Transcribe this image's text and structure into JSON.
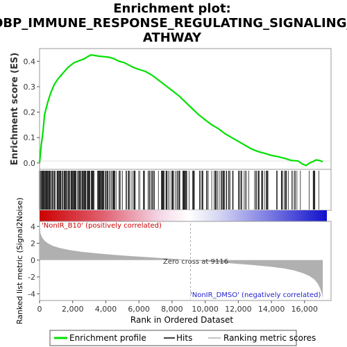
{
  "title_line1": "Enrichment plot:",
  "title_line2": "GOBP_IMMUNE_RESPONSE_REGULATING_SIGNALING_P",
  "title_line3": "ATHWAY",
  "es_ylabel": "Enrichment score (ES)",
  "rank_ylabel": "Ranked list metric (Signal2Noise)",
  "xlabel": "Rank in Ordered Dataset",
  "pos_label": "'NonIR_B10' (positively correlated)",
  "neg_label": "'NonIR_DMSO' (negatively correlated)",
  "zero_cross_label": "Zero cross at 9116",
  "legend": {
    "enrichment": "Enrichment profile",
    "hits": "Hits",
    "ranking": "Ranking metric scores"
  },
  "colors": {
    "es_line": "#00e000",
    "hits": "#000000",
    "metric_fill": "#b0b0b0",
    "pos": "#dd0000",
    "neg": "#2222dd"
  },
  "chart_data": {
    "type": "line",
    "x_ticks": [
      "0",
      "2,000",
      "4,000",
      "6,000",
      "8,000",
      "10,000",
      "12,000",
      "14,000",
      "16,000"
    ],
    "es_ticks": [
      "0.0",
      "0.1",
      "0.2",
      "0.3",
      "0.4"
    ],
    "metric_ticks": [
      "4",
      "2",
      "0",
      "-2",
      "-4"
    ],
    "xlim": [
      0,
      17600
    ],
    "es_ylim": [
      -0.025,
      0.45
    ],
    "metric_ylim": [
      -4.8,
      4.6
    ],
    "zero_cross": 9116,
    "dataset_size": 17100,
    "enrichment_profile": {
      "x": [
        0,
        100,
        200,
        300,
        500,
        700,
        900,
        1100,
        1300,
        1500,
        1700,
        1900,
        2100,
        2300,
        2500,
        2700,
        2900,
        3100,
        3300,
        3600,
        3900,
        4200,
        4500,
        4800,
        5100,
        5400,
        5700,
        6000,
        6400,
        6800,
        7200,
        7600,
        8000,
        8400,
        8800,
        9200,
        9600,
        10000,
        10400,
        10800,
        11200,
        11600,
        12000,
        12400,
        12800,
        13200,
        13600,
        14000,
        14400,
        14800,
        15200,
        15600,
        15900,
        16100,
        16300,
        16500,
        16700,
        16900,
        17100
      ],
      "y": [
        0.0,
        0.07,
        0.12,
        0.19,
        0.24,
        0.28,
        0.31,
        0.33,
        0.345,
        0.36,
        0.375,
        0.385,
        0.395,
        0.4,
        0.405,
        0.41,
        0.418,
        0.425,
        0.423,
        0.42,
        0.418,
        0.416,
        0.41,
        0.4,
        0.395,
        0.385,
        0.375,
        0.368,
        0.36,
        0.345,
        0.325,
        0.305,
        0.285,
        0.265,
        0.24,
        0.215,
        0.19,
        0.17,
        0.15,
        0.135,
        0.115,
        0.1,
        0.085,
        0.07,
        0.055,
        0.045,
        0.038,
        0.03,
        0.025,
        0.018,
        0.01,
        0.008,
        -0.005,
        -0.01,
        0.0,
        0.005,
        0.012,
        0.01,
        0.005
      ]
    },
    "ranking_metric": {
      "x": [
        0,
        50,
        150,
        300,
        500,
        800,
        1200,
        1800,
        2500,
        3500,
        4500,
        5500,
        6500,
        7500,
        8500,
        9116,
        10000,
        11000,
        12000,
        13000,
        14000,
        14800,
        15400,
        15900,
        16300,
        16600,
        16800,
        16950,
        17050,
        17100
      ],
      "y": [
        4.3,
        3.2,
        2.7,
        2.3,
        2.0,
        1.7,
        1.45,
        1.2,
        1.0,
        0.8,
        0.62,
        0.48,
        0.35,
        0.22,
        0.1,
        0.0,
        -0.15,
        -0.3,
        -0.45,
        -0.6,
        -0.8,
        -1.0,
        -1.25,
        -1.55,
        -1.9,
        -2.3,
        -2.8,
        -3.4,
        -4.0,
        -4.6
      ]
    }
  }
}
